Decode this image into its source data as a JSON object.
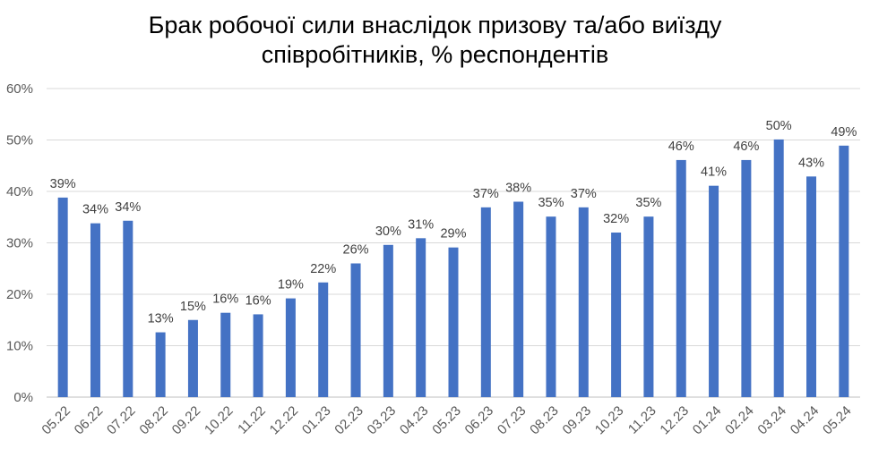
{
  "chart_data": {
    "type": "bar",
    "title_line1": "Брак робочої сили внаслідок призову та/або виїзду",
    "title_line2": "співробітників, % респондентів",
    "categories": [
      "05.22",
      "06.22",
      "07.22",
      "08.22",
      "09.22",
      "10.22",
      "11.22",
      "12.22",
      "01.23",
      "02.23",
      "03.23",
      "04.23",
      "05.23",
      "06.23",
      "07.23",
      "08.23",
      "09.23",
      "10.23",
      "11.23",
      "12.23",
      "01.24",
      "02.24",
      "03.24",
      "04.24",
      "05.24"
    ],
    "values": [
      38.8,
      33.8,
      34.3,
      12.6,
      15.0,
      16.4,
      16.1,
      19.2,
      22.3,
      26.0,
      29.6,
      30.9,
      29.1,
      36.9,
      38.0,
      35.1,
      36.9,
      32.0,
      35.1,
      46.1,
      41.1,
      46.1,
      50.1,
      42.9,
      48.9
    ],
    "data_labels": [
      "39%",
      "34%",
      "34%",
      "13%",
      "15%",
      "16%",
      "16%",
      "19%",
      "22%",
      "26%",
      "30%",
      "31%",
      "29%",
      "37%",
      "38%",
      "35%",
      "37%",
      "32%",
      "35%",
      "46%",
      "41%",
      "46%",
      "50%",
      "43%",
      "49%"
    ],
    "y_ticks": [
      "0%",
      "10%",
      "20%",
      "30%",
      "40%",
      "50%",
      "60%"
    ],
    "ylim": [
      0,
      60
    ],
    "grid": true,
    "legend": "none",
    "bar_color": "#4472C4",
    "grid_color": "#d9d9d9"
  }
}
